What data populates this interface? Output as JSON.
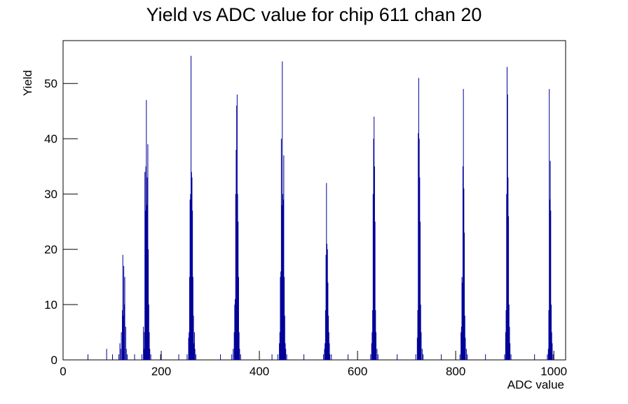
{
  "chart_data": {
    "type": "histogram",
    "title": "Yield vs ADC value for chip 611 chan 20",
    "x_label": "ADC value",
    "y_label": "Yield",
    "color": "#000099",
    "xlim": [
      0,
      1024
    ],
    "ylim": [
      0,
      57.75
    ],
    "xticks": [
      0,
      200,
      400,
      600,
      800,
      1000
    ],
    "yticks": [
      0,
      10,
      20,
      30,
      40,
      50
    ],
    "x": [
      50,
      88,
      100,
      113,
      115,
      117,
      118,
      120,
      121,
      122,
      123,
      124,
      125,
      127,
      128,
      130,
      145,
      160,
      163,
      164,
      165,
      166,
      167,
      168,
      169,
      170,
      171,
      172,
      173,
      174,
      175,
      176,
      178,
      198,
      235,
      252,
      255,
      256,
      257,
      258,
      259,
      260,
      261,
      262,
      263,
      264,
      265,
      266,
      267,
      268,
      270,
      320,
      343,
      346,
      348,
      349,
      350,
      351,
      352,
      353,
      354,
      355,
      356,
      357,
      358,
      359,
      361,
      425,
      437,
      440,
      441,
      442,
      443,
      444,
      445,
      446,
      447,
      448,
      449,
      450,
      451,
      452,
      453,
      455,
      490,
      530,
      532,
      533,
      534,
      535,
      536,
      537,
      538,
      539,
      540,
      541,
      542,
      543,
      546,
      580,
      626,
      628,
      629,
      630,
      631,
      632,
      633,
      634,
      635,
      636,
      637,
      639,
      641,
      680,
      718,
      721,
      722,
      723,
      724,
      725,
      726,
      727,
      728,
      729,
      731,
      733,
      770,
      808,
      810,
      811,
      812,
      813,
      814,
      815,
      816,
      817,
      818,
      819,
      821,
      823,
      860,
      899,
      901,
      902,
      903,
      904,
      905,
      906,
      907,
      908,
      909,
      910,
      912,
      960,
      986,
      988,
      989,
      990,
      991,
      992,
      993,
      994,
      995,
      996,
      998
    ],
    "values": [
      1,
      2,
      1,
      1,
      3,
      2,
      5,
      9,
      19,
      8,
      17,
      10,
      15,
      6,
      2,
      1,
      1,
      1,
      6,
      2,
      5,
      34,
      27,
      35,
      47,
      28,
      33,
      39,
      20,
      10,
      5,
      2,
      1,
      1,
      1,
      1,
      4,
      5,
      15,
      29,
      30,
      55,
      34,
      33,
      27,
      15,
      8,
      3,
      5,
      2,
      1,
      1,
      1,
      2,
      5,
      10,
      11,
      30,
      38,
      46,
      48,
      30,
      25,
      15,
      5,
      2,
      1,
      1,
      1,
      3,
      5,
      15,
      16,
      40,
      28,
      54,
      30,
      29,
      37,
      15,
      8,
      3,
      2,
      1,
      1,
      1,
      2,
      3,
      9,
      19,
      32,
      21,
      20,
      14,
      8,
      5,
      3,
      1,
      1,
      1,
      1,
      3,
      5,
      9,
      30,
      40,
      44,
      35,
      25,
      9,
      5,
      2,
      1,
      1,
      1,
      4,
      9,
      41,
      51,
      40,
      33,
      25,
      10,
      5,
      2,
      1,
      1,
      1,
      5,
      6,
      15,
      14,
      35,
      49,
      31,
      23,
      8,
      4,
      2,
      1,
      1,
      1,
      5,
      9,
      30,
      53,
      48,
      33,
      26,
      10,
      6,
      3,
      1,
      1,
      1,
      2,
      9,
      49,
      29,
      36,
      27,
      10,
      5,
      3,
      1
    ]
  }
}
